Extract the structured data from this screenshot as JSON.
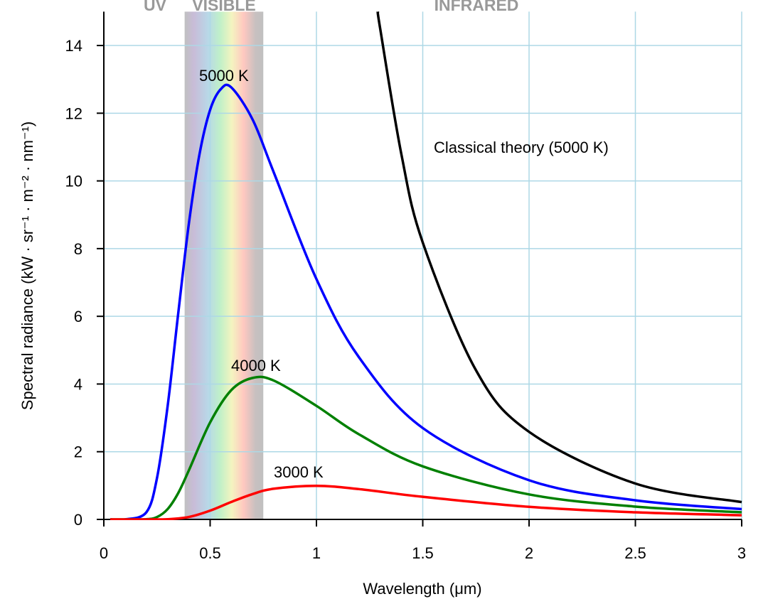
{
  "chart_data": {
    "type": "line",
    "xlabel": "Wavelength (μm)",
    "ylabel": "Spectral radiance (kW · sr⁻¹ · m⁻² · nm⁻¹)",
    "xlim": [
      0,
      3
    ],
    "ylim": [
      0,
      15
    ],
    "x_ticks": [
      "0",
      "0.5",
      "1",
      "1.5",
      "2",
      "2.5",
      "3"
    ],
    "y_ticks": [
      "0",
      "2",
      "4",
      "6",
      "8",
      "10",
      "12",
      "14"
    ],
    "grid": true,
    "grid_color": "#add8e6",
    "regions": [
      {
        "label": "UV"
      },
      {
        "label": "VISIBLE",
        "x_range": [
          0.38,
          0.75
        ]
      },
      {
        "label": "INFRARED"
      }
    ],
    "series": [
      {
        "name": "5000 K",
        "color": "#0000ff",
        "points": [
          [
            0.03,
            0
          ],
          [
            0.1,
            0
          ],
          [
            0.2,
            0.21
          ],
          [
            0.25,
            1.22
          ],
          [
            0.3,
            3.34
          ],
          [
            0.35,
            6.09
          ],
          [
            0.4,
            8.74
          ],
          [
            0.45,
            10.79
          ],
          [
            0.5,
            12.1
          ],
          [
            0.55,
            12.71
          ],
          [
            0.6,
            12.76
          ],
          [
            0.7,
            11.81
          ],
          [
            0.8,
            10.24
          ],
          [
            1.0,
            7.1
          ],
          [
            1.2,
            4.79
          ],
          [
            1.5,
            2.7
          ],
          [
            2.0,
            1.157
          ],
          [
            2.5,
            0.564
          ],
          [
            3.0,
            0.305
          ]
        ]
      },
      {
        "name": "4000 K",
        "color": "#008000",
        "points": [
          [
            0.03,
            0
          ],
          [
            0.1,
            0
          ],
          [
            0.2,
            0.006
          ],
          [
            0.25,
            0.069
          ],
          [
            0.3,
            0.304
          ],
          [
            0.35,
            0.779
          ],
          [
            0.4,
            1.45
          ],
          [
            0.5,
            2.866
          ],
          [
            0.6,
            3.823
          ],
          [
            0.7,
            4.18
          ],
          [
            0.8,
            4.1
          ],
          [
            1.0,
            3.355
          ],
          [
            1.2,
            2.514
          ],
          [
            1.5,
            1.568
          ],
          [
            2.0,
            0.738
          ],
          [
            2.5,
            0.379
          ],
          [
            3.0,
            0.2115
          ]
        ]
      },
      {
        "name": "3000 K",
        "color": "#ff0000",
        "points": [
          [
            0.03,
            0
          ],
          [
            0.1,
            0
          ],
          [
            0.2,
            0
          ],
          [
            0.3,
            0.006
          ],
          [
            0.4,
            0.072
          ],
          [
            0.5,
            0.26
          ],
          [
            0.6,
            0.517
          ],
          [
            0.7,
            0.75
          ],
          [
            0.8,
            0.907
          ],
          [
            1.0,
            0.9925
          ],
          [
            1.2,
            0.896
          ],
          [
            1.5,
            0.668
          ],
          [
            2.0,
            0.372
          ],
          [
            2.5,
            0.21
          ],
          [
            3.0,
            0.124
          ]
        ]
      },
      {
        "name": "Classical theory (5000 K)",
        "color": "#000000",
        "points": [
          [
            1.289,
            15
          ],
          [
            1.3,
            14.49
          ],
          [
            1.4,
            10.77
          ],
          [
            1.5,
            8.18
          ],
          [
            1.75,
            4.41
          ],
          [
            2.0,
            2.587
          ],
          [
            2.5,
            1.06
          ],
          [
            3.0,
            0.511
          ]
        ]
      }
    ]
  }
}
